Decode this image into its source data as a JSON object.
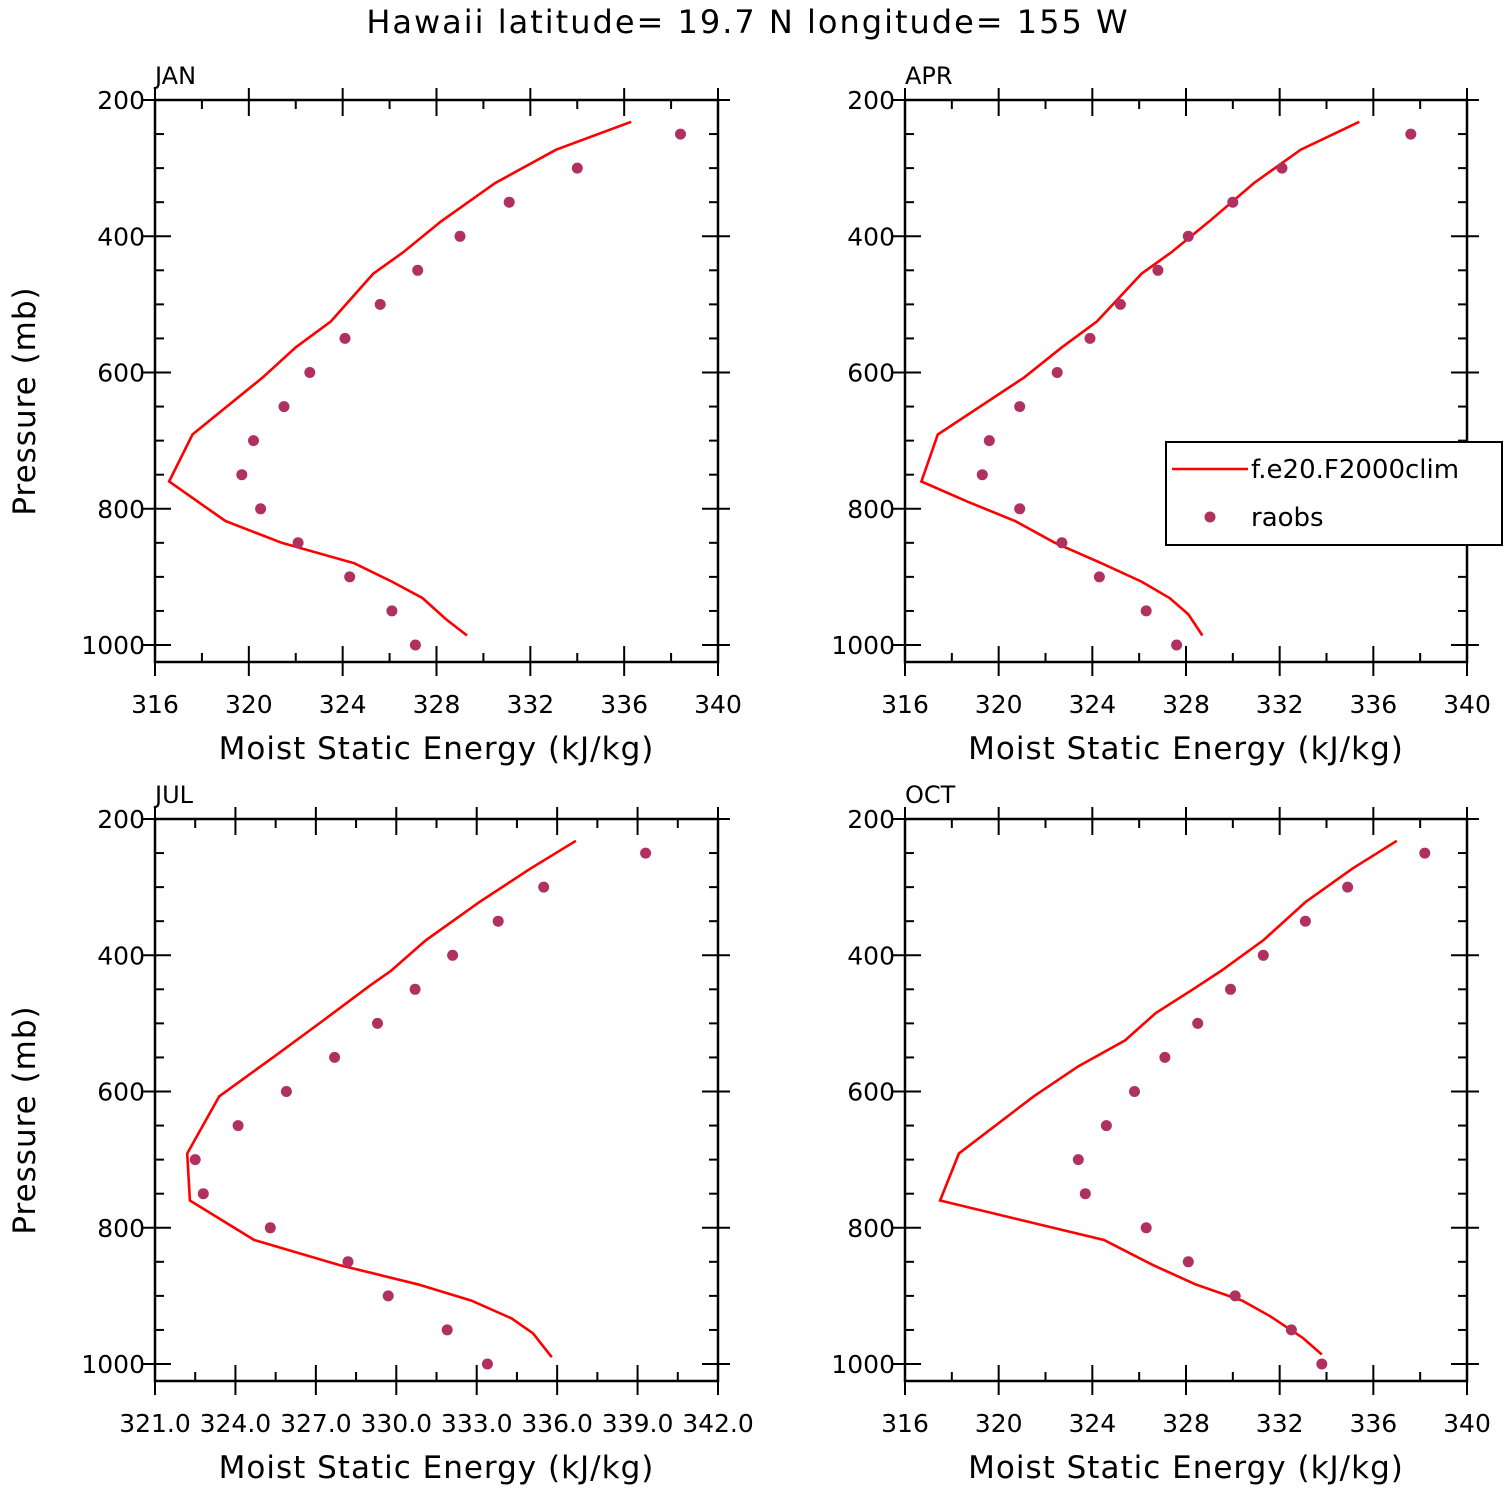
{
  "title": "Hawaii  latitude= 19.7 N longitude= 155 W",
  "colors": {
    "model": "#ff0000",
    "obs": "#b03060",
    "axis": "#000000"
  },
  "legend": {
    "placement": "right (APR panel)",
    "entries": [
      {
        "label": "f.e20.F2000clim",
        "marker": "line",
        "color": "#ff0000"
      },
      {
        "label": "raobs",
        "marker": "dot",
        "color": "#b03060"
      }
    ]
  },
  "chart_data": [
    {
      "type": "line",
      "panel_label": "JAN",
      "xlabel": "Moist Static Energy (kJ/kg)",
      "ylabel": "Pressure (mb)",
      "xlim": [
        316,
        340
      ],
      "ylim": [
        1000,
        200
      ],
      "y_inverted": true,
      "xticks": [
        "316",
        "320",
        "324",
        "328",
        "332",
        "336",
        "340"
      ],
      "yticks": [
        "200",
        "400",
        "600",
        "800",
        "1000"
      ],
      "series": [
        {
          "name": "f.e20.F2000clim",
          "style": "line",
          "points": [
            [
              336.3,
              232
            ],
            [
              333.1,
              273
            ],
            [
              330.5,
              322
            ],
            [
              328.2,
              378
            ],
            [
              326.6,
              423
            ],
            [
              325.3,
              455
            ],
            [
              323.5,
              525
            ],
            [
              322.0,
              563
            ],
            [
              320.6,
              607
            ],
            [
              317.6,
              691
            ],
            [
              316.6,
              760
            ],
            [
              319.0,
              818
            ],
            [
              321.4,
              850
            ],
            [
              324.5,
              880
            ],
            [
              326.1,
              907
            ],
            [
              327.4,
              931
            ],
            [
              328.4,
              962
            ],
            [
              329.3,
              986
            ]
          ]
        },
        {
          "name": "raobs",
          "style": "dot",
          "points": [
            [
              338.4,
              250
            ],
            [
              334.0,
              300
            ],
            [
              331.1,
              350
            ],
            [
              329.0,
              400
            ],
            [
              327.2,
              450
            ],
            [
              325.6,
              500
            ],
            [
              324.1,
              550
            ],
            [
              322.6,
              600
            ],
            [
              321.5,
              650
            ],
            [
              320.2,
              700
            ],
            [
              319.7,
              750
            ],
            [
              320.5,
              800
            ],
            [
              322.1,
              850
            ],
            [
              324.3,
              900
            ],
            [
              326.1,
              950
            ],
            [
              327.1,
              1000
            ]
          ]
        }
      ]
    },
    {
      "type": "line",
      "panel_label": "APR",
      "xlabel": "Moist Static Energy (kJ/kg)",
      "ylabel": "",
      "xlim": [
        316,
        340
      ],
      "ylim": [
        1000,
        200
      ],
      "y_inverted": true,
      "xticks": [
        "316",
        "320",
        "324",
        "328",
        "332",
        "336",
        "340"
      ],
      "yticks": [
        "200",
        "400",
        "600",
        "800",
        "1000"
      ],
      "series": [
        {
          "name": "f.e20.F2000clim",
          "style": "line",
          "points": [
            [
              335.4,
              232
            ],
            [
              332.9,
              273
            ],
            [
              330.9,
              322
            ],
            [
              329.0,
              378
            ],
            [
              327.4,
              423
            ],
            [
              326.1,
              455
            ],
            [
              324.2,
              525
            ],
            [
              322.7,
              563
            ],
            [
              321.1,
              607
            ],
            [
              317.4,
              691
            ],
            [
              316.7,
              760
            ],
            [
              318.7,
              790
            ],
            [
              320.7,
              818
            ],
            [
              322.4,
              850
            ],
            [
              324.4,
              880
            ],
            [
              326.1,
              907
            ],
            [
              327.3,
              931
            ],
            [
              328.1,
              955
            ],
            [
              328.7,
              986
            ]
          ]
        },
        {
          "name": "raobs",
          "style": "dot",
          "points": [
            [
              337.6,
              250
            ],
            [
              332.1,
              300
            ],
            [
              330.0,
              350
            ],
            [
              328.1,
              400
            ],
            [
              326.8,
              450
            ],
            [
              325.2,
              500
            ],
            [
              323.9,
              550
            ],
            [
              322.5,
              600
            ],
            [
              320.9,
              650
            ],
            [
              319.6,
              700
            ],
            [
              319.3,
              750
            ],
            [
              320.9,
              800
            ],
            [
              322.7,
              850
            ],
            [
              324.3,
              900
            ],
            [
              326.3,
              950
            ],
            [
              327.6,
              1000
            ]
          ]
        }
      ]
    },
    {
      "type": "line",
      "panel_label": "JUL",
      "xlabel": "Moist Static Energy (kJ/kg)",
      "ylabel": "Pressure (mb)",
      "xlim": [
        321.0,
        342.0
      ],
      "ylim": [
        1000,
        200
      ],
      "y_inverted": true,
      "xticks": [
        "321.0",
        "324.0",
        "327.0",
        "330.0",
        "333.0",
        "336.0",
        "339.0",
        "342.0"
      ],
      "yticks": [
        "200",
        "400",
        "600",
        "800",
        "1000"
      ],
      "series": [
        {
          "name": "f.e20.F2000clim",
          "style": "line",
          "points": [
            [
              336.7,
              232
            ],
            [
              335.0,
              273
            ],
            [
              333.1,
              322
            ],
            [
              331.1,
              378
            ],
            [
              329.8,
              423
            ],
            [
              329.0,
              445
            ],
            [
              327.2,
              498
            ],
            [
              325.4,
              550
            ],
            [
              323.4,
              607
            ],
            [
              322.2,
              691
            ],
            [
              322.3,
              760
            ],
            [
              324.7,
              818
            ],
            [
              327.9,
              855
            ],
            [
              330.8,
              883
            ],
            [
              332.8,
              907
            ],
            [
              334.3,
              933
            ],
            [
              335.1,
              955
            ],
            [
              335.8,
              990
            ]
          ]
        },
        {
          "name": "raobs",
          "style": "dot",
          "points": [
            [
              339.3,
              250
            ],
            [
              335.5,
              300
            ],
            [
              333.8,
              350
            ],
            [
              332.1,
              400
            ],
            [
              330.7,
              450
            ],
            [
              329.3,
              500
            ],
            [
              327.7,
              550
            ],
            [
              325.9,
              600
            ],
            [
              324.1,
              650
            ],
            [
              322.5,
              700
            ],
            [
              322.8,
              750
            ],
            [
              325.3,
              800
            ],
            [
              328.2,
              850
            ],
            [
              329.7,
              900
            ],
            [
              331.9,
              950
            ],
            [
              333.4,
              1000
            ]
          ]
        }
      ]
    },
    {
      "type": "line",
      "panel_label": "OCT",
      "xlabel": "Moist Static Energy (kJ/kg)",
      "ylabel": "",
      "xlim": [
        316,
        340
      ],
      "ylim": [
        1000,
        200
      ],
      "y_inverted": true,
      "xticks": [
        "316",
        "320",
        "324",
        "328",
        "332",
        "336",
        "340"
      ],
      "yticks": [
        "200",
        "400",
        "600",
        "800",
        "1000"
      ],
      "series": [
        {
          "name": "f.e20.F2000clim",
          "style": "line",
          "points": [
            [
              337.0,
              232
            ],
            [
              335.1,
              273
            ],
            [
              333.1,
              322
            ],
            [
              331.3,
              378
            ],
            [
              329.5,
              423
            ],
            [
              328.3,
              450
            ],
            [
              326.7,
              485
            ],
            [
              325.4,
              525
            ],
            [
              323.4,
              563
            ],
            [
              321.5,
              607
            ],
            [
              318.3,
              691
            ],
            [
              317.5,
              760
            ],
            [
              324.5,
              818
            ],
            [
              326.6,
              855
            ],
            [
              328.4,
              883
            ],
            [
              330.4,
              907
            ],
            [
              331.6,
              930
            ],
            [
              333.0,
              962
            ],
            [
              333.8,
              986
            ]
          ]
        },
        {
          "name": "raobs",
          "style": "dot",
          "points": [
            [
              338.2,
              250
            ],
            [
              334.9,
              300
            ],
            [
              333.1,
              350
            ],
            [
              331.3,
              400
            ],
            [
              329.9,
              450
            ],
            [
              328.5,
              500
            ],
            [
              327.1,
              550
            ],
            [
              325.8,
              600
            ],
            [
              324.6,
              650
            ],
            [
              323.4,
              700
            ],
            [
              323.7,
              750
            ],
            [
              326.3,
              800
            ],
            [
              328.1,
              850
            ],
            [
              330.1,
              900
            ],
            [
              332.5,
              950
            ],
            [
              333.8,
              1000
            ]
          ]
        }
      ]
    }
  ]
}
